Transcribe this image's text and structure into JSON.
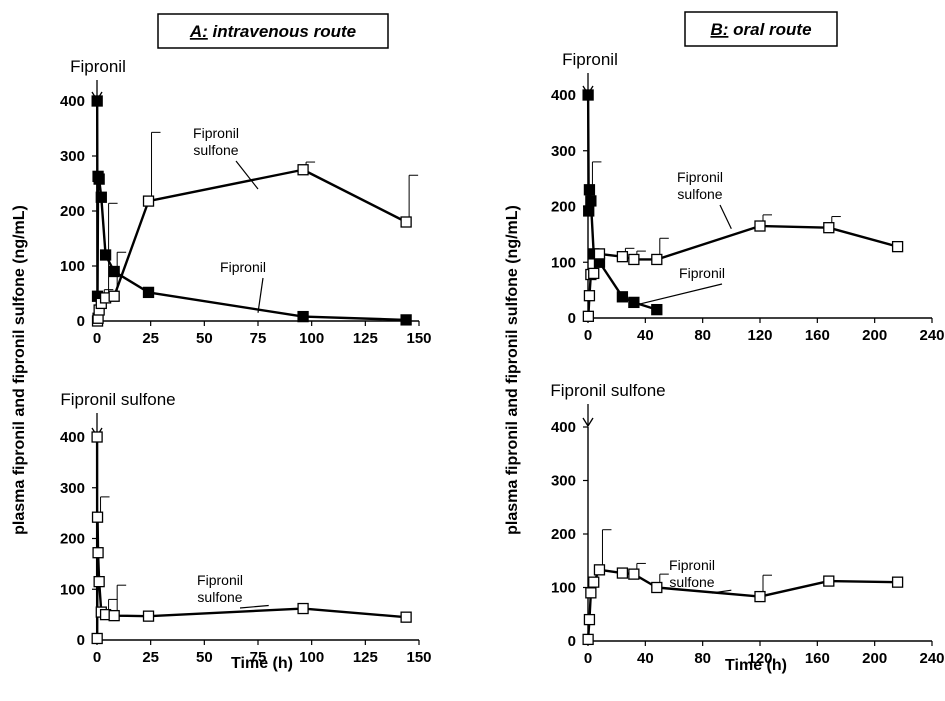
{
  "figure": {
    "panel_a_prefix": "A:",
    "panel_a_title": " intravenous route",
    "panel_b_prefix": "B:",
    "panel_b_title": " oral route",
    "ylabel": "plasma fipronil and fipronil sulfone (ng/mL)",
    "xlabel": "Time (h)"
  },
  "chart_data": [
    {
      "id": "A-top",
      "type": "line",
      "title": "A: intravenous route",
      "dose_label": "Fipronil",
      "xlabel": "",
      "ylabel": "plasma fipronil and fipronil sulfone (ng/mL)",
      "xlim": [
        0,
        150
      ],
      "ylim": [
        0,
        400
      ],
      "xticks": [
        0,
        25,
        50,
        75,
        100,
        125,
        150
      ],
      "yticks": [
        0,
        100,
        200,
        300,
        400
      ],
      "series": [
        {
          "name": "Fipronil",
          "marker": "filled-square",
          "x": [
            0.083,
            0.25,
            0.5,
            1,
            2,
            4,
            8,
            24,
            96,
            144
          ],
          "y": [
            400,
            45,
            263,
            258,
            225,
            120,
            90,
            52,
            8,
            2
          ],
          "err": [
            0,
            0,
            0,
            0,
            0,
            0,
            0,
            0,
            0,
            0
          ]
        },
        {
          "name": "Fipronil sulfone",
          "marker": "open-square",
          "x": [
            0.25,
            0.5,
            1,
            2,
            4,
            8,
            24,
            96,
            144
          ],
          "y": [
            0,
            5,
            20,
            32,
            42,
            45,
            218,
            275,
            180
          ],
          "err": [
            0,
            0,
            0,
            25,
            172,
            80,
            125,
            14,
            85
          ]
        }
      ],
      "annotations": [
        {
          "text": "Fipronil sulfone",
          "lines": [
            "Fipronil",
            "sulfone"
          ],
          "points_to": [
            75,
            240
          ]
        },
        {
          "text": "Fipronil",
          "lines": [
            "Fipronil"
          ],
          "points_to": [
            75,
            15
          ]
        }
      ]
    },
    {
      "id": "A-bottom",
      "type": "line",
      "title": "",
      "dose_label": "Fipronil sulfone",
      "xlabel": "Time (h)",
      "ylabel": "plasma fipronil and fipronil sulfone (ng/mL)",
      "xlim": [
        0,
        150
      ],
      "ylim": [
        0,
        400
      ],
      "xticks": [
        0,
        25,
        50,
        75,
        100,
        125,
        150
      ],
      "yticks": [
        0,
        100,
        200,
        300,
        400
      ],
      "series": [
        {
          "name": "Fipronil sulfone",
          "marker": "open-square",
          "x": [
            0.05,
            0.083,
            0.25,
            0.5,
            1,
            2,
            4,
            8,
            24,
            96,
            144
          ],
          "y": [
            400,
            3,
            242,
            172,
            115,
            55,
            50,
            48,
            47,
            62,
            45
          ],
          "err": [
            0,
            0,
            40,
            0,
            0,
            0,
            30,
            60,
            0,
            0,
            0
          ]
        }
      ],
      "annotations": [
        {
          "text": "Fipronil sulfone",
          "lines": [
            "Fipronil",
            "sulfone"
          ],
          "points_to": [
            80,
            68
          ]
        }
      ]
    },
    {
      "id": "B-top",
      "type": "line",
      "title": "B: oral route",
      "dose_label": "Fipronil",
      "xlabel": "",
      "ylabel": "plasma fipronil and fipronil sulfone (ng/mL)",
      "xlim": [
        0,
        240
      ],
      "ylim": [
        0,
        400
      ],
      "xticks": [
        0,
        40,
        80,
        120,
        160,
        200,
        240
      ],
      "yticks": [
        0,
        100,
        200,
        300,
        400
      ],
      "series": [
        {
          "name": "Fipronil",
          "marker": "filled-square",
          "x": [
            0.083,
            0.5,
            1,
            2,
            4,
            8,
            24,
            32,
            48
          ],
          "y": [
            400,
            192,
            230,
            210,
            115,
            100,
            38,
            28,
            15
          ],
          "err": [
            0,
            0,
            50,
            0,
            0,
            0,
            0,
            0,
            0
          ]
        },
        {
          "name": "Fipronil sulfone",
          "marker": "open-square",
          "x": [
            0.25,
            1,
            2,
            4,
            8,
            24,
            32,
            48,
            120,
            168,
            216
          ],
          "y": [
            3,
            40,
            78,
            80,
            115,
            110,
            105,
            105,
            165,
            162,
            128
          ],
          "err": [
            0,
            0,
            0,
            0,
            0,
            15,
            15,
            38,
            20,
            20,
            0
          ]
        }
      ],
      "annotations": [
        {
          "text": "Fipronil sulfone",
          "lines": [
            "Fipronil",
            "sulfone"
          ],
          "points_to": [
            100,
            160
          ]
        },
        {
          "text": "Fipronil",
          "lines": [
            "Fipronil"
          ],
          "points_to": [
            36,
            25
          ]
        }
      ]
    },
    {
      "id": "B-bottom",
      "type": "line",
      "title": "",
      "dose_label": "Fipronil sulfone",
      "xlabel": "Time (h)",
      "ylabel": "plasma fipronil and fipronil sulfone (ng/mL)",
      "xlim": [
        0,
        240
      ],
      "ylim": [
        0,
        400
      ],
      "xticks": [
        0,
        40,
        80,
        120,
        160,
        200,
        240
      ],
      "yticks": [
        0,
        100,
        200,
        300,
        400
      ],
      "series": [
        {
          "name": "Fipronil sulfone",
          "marker": "open-square",
          "x": [
            0.083,
            1,
            2,
            4,
            8,
            24,
            32,
            48,
            120,
            168,
            216
          ],
          "y": [
            3,
            40,
            90,
            110,
            133,
            127,
            125,
            100,
            83,
            112,
            110
          ],
          "err": [
            0,
            0,
            0,
            0,
            75,
            0,
            20,
            25,
            40,
            0,
            0
          ]
        }
      ],
      "annotations": [
        {
          "text": "Fipronil sulfone",
          "lines": [
            "Fipronil",
            "sulfone"
          ],
          "points_to": [
            100,
            95
          ]
        }
      ]
    }
  ]
}
